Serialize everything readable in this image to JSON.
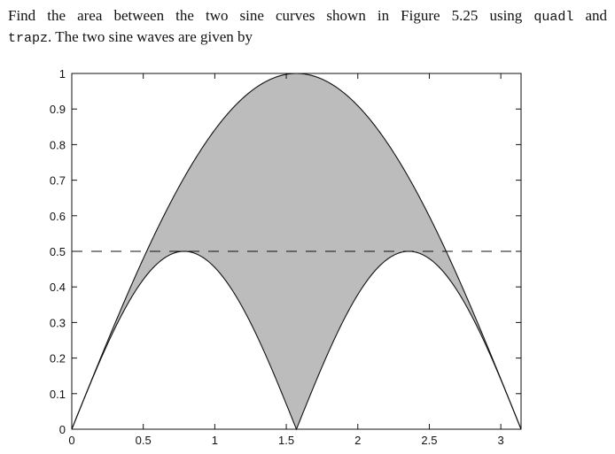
{
  "problem": {
    "line1_a": "Find the area between the two sine curves shown in Figure 5.25 using ",
    "line1_code": "quadl",
    "line1_b": " and",
    "line2_code": "trapz",
    "line2_b": ". The two sine waves are given by"
  },
  "chart_data": {
    "type": "area",
    "title": "",
    "xlabel": "",
    "ylabel": "",
    "xlim": [
      0,
      3.1416
    ],
    "ylim": [
      0,
      1
    ],
    "x_ticks": [
      "0",
      "0.5",
      "1",
      "1.5",
      "2",
      "2.5",
      "3"
    ],
    "x_tick_values": [
      0,
      0.5,
      1,
      1.5,
      2,
      2.5,
      3
    ],
    "y_ticks": [
      "0",
      "0.1",
      "0.2",
      "0.3",
      "0.4",
      "0.5",
      "0.6",
      "0.7",
      "0.8",
      "0.9",
      "1"
    ],
    "y_tick_values": [
      0,
      0.1,
      0.2,
      0.3,
      0.4,
      0.5,
      0.6,
      0.7,
      0.8,
      0.9,
      1
    ],
    "grid": false,
    "series": [
      {
        "expression": "sin(x)",
        "x_range": [
          0,
          3.1416
        ]
      },
      {
        "expression": "0.5*|sin(2x)|",
        "x_range": [
          0,
          3.1416
        ]
      }
    ],
    "reference_line": {
      "y": 0.5,
      "style": "dashed"
    },
    "fill_between": {
      "color": "#bcbcbc",
      "between": [
        "sin(x)",
        "0.5*|sin(2x)|"
      ]
    },
    "line_color": "#111111"
  }
}
